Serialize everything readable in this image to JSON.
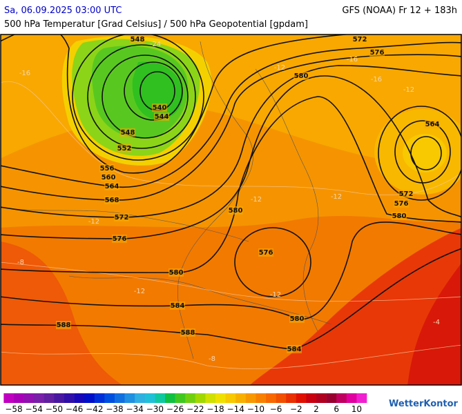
{
  "header": {
    "datetime": "Sa, 06.09.2025 03:00 UTC",
    "model": "GFS (NOAA) Fr 12 + 183h",
    "subtitle": "500 hPa Temperatur [Grad Celsius] / 500 hPa Geopotential [gpdam]"
  },
  "contour_labels": [
    548,
    572,
    576,
    580,
    540,
    544,
    564,
    548,
    552,
    556,
    560,
    564,
    568,
    572,
    576,
    580,
    580,
    572,
    576,
    576,
    580,
    584,
    580,
    588,
    588,
    584
  ],
  "temperature_labels": [
    "-24",
    "-16",
    "-12",
    "-16",
    "-16",
    "-12",
    "-12",
    "-12",
    "-12",
    "-8",
    "-12",
    "-12",
    "-8",
    "-4"
  ],
  "legend": {
    "labels": [
      "−58",
      "−54",
      "−50",
      "−46",
      "−42",
      "−38",
      "−34",
      "−30",
      "−26",
      "−22",
      "−18",
      "−14",
      "−10",
      "−6",
      "−2",
      "2",
      "6",
      "10"
    ],
    "colors": [
      "#c000c0",
      "#a800b8",
      "#9010b0",
      "#7820a8",
      "#6020a0",
      "#4818a0",
      "#3010a8",
      "#1808b8",
      "#0010c8",
      "#0030d8",
      "#0050e0",
      "#1070e0",
      "#2090e0",
      "#30b0e0",
      "#20c0d8",
      "#10c8a0",
      "#10c040",
      "#40c820",
      "#70d010",
      "#a0d800",
      "#d0e000",
      "#f0e000",
      "#f8c800",
      "#f8b000",
      "#f89800",
      "#f88000",
      "#f86800",
      "#f05000",
      "#e83000",
      "#e01000",
      "#c80010",
      "#b00020",
      "#980030",
      "#c00060",
      "#e000a0",
      "#f020d0"
    ]
  },
  "logo": "WetterKontor"
}
